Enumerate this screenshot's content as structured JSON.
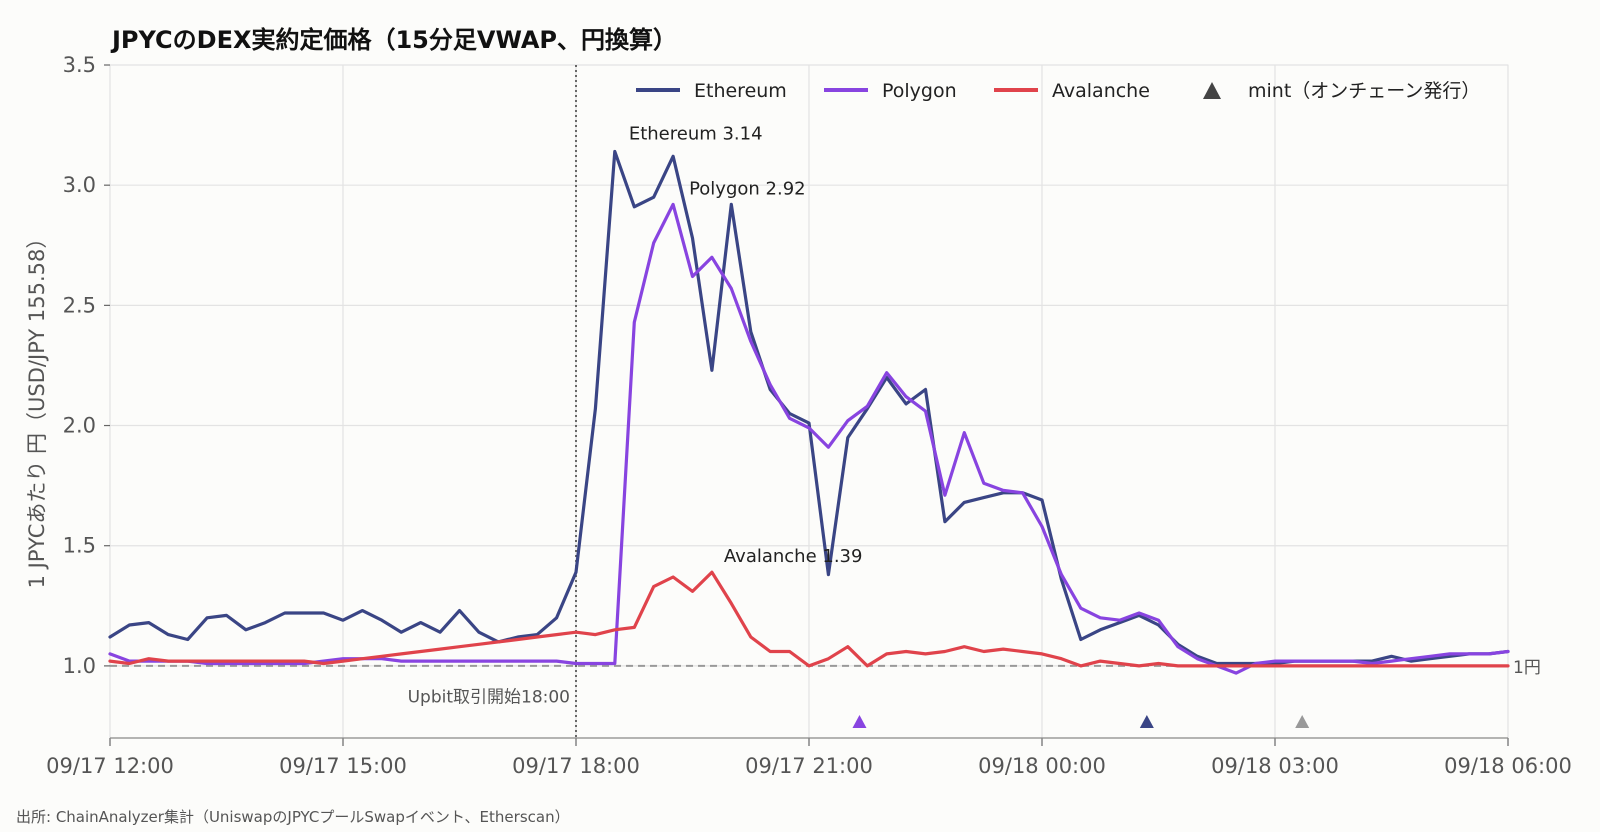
{
  "chart_data": {
    "type": "line",
    "title": "JPYCのDEX実約定価格（15分足VWAP、円換算）",
    "ylabel": "1 JPYCあたり 円（USD/JPY 155.58）",
    "source": "出所: ChainAnalyzer集計（UniswapのJPYCプールSwapイベント、Etherscan）",
    "x_ticks": [
      "09/17 12:00",
      "09/17 15:00",
      "09/17 18:00",
      "09/17 21:00",
      "09/18 00:00",
      "09/18 03:00",
      "09/18 06:00"
    ],
    "x_range_hours": [
      0,
      18
    ],
    "ylim": [
      0.7,
      3.5
    ],
    "y_ticks": [
      "1.0",
      "1.5",
      "2.0",
      "2.5",
      "3.0",
      "3.5"
    ],
    "grid": true,
    "legend_position": "top-right",
    "reference_line": {
      "y": 1.0,
      "label": "1円"
    },
    "event_line": {
      "x_hours": 6.0,
      "label": "Upbit取引開始18:00"
    },
    "series": [
      {
        "name": "Ethereum",
        "color": "#3a4585",
        "x_hours": [
          0,
          0.25,
          0.5,
          0.75,
          1.0,
          1.25,
          1.5,
          1.75,
          2.0,
          2.25,
          2.5,
          2.75,
          3.0,
          3.25,
          3.5,
          3.75,
          4.0,
          4.25,
          4.5,
          4.75,
          5.0,
          5.25,
          5.5,
          5.75,
          6.0,
          6.25,
          6.5,
          6.75,
          7.0,
          7.25,
          7.5,
          7.75,
          8.0,
          8.25,
          8.5,
          8.75,
          9.0,
          9.25,
          9.5,
          9.75,
          10.0,
          10.25,
          10.5,
          10.75,
          11.0,
          11.25,
          11.5,
          11.75,
          12.0,
          12.25,
          12.5,
          12.75,
          13.0,
          13.25,
          13.5,
          13.75,
          14.0,
          14.25,
          14.5,
          14.75,
          15.0,
          15.25,
          15.5,
          15.75,
          16.0,
          16.25,
          16.5,
          16.75,
          17.0,
          17.25,
          17.5,
          17.75,
          18.0
        ],
        "values": [
          1.12,
          1.17,
          1.18,
          1.13,
          1.11,
          1.2,
          1.21,
          1.15,
          1.18,
          1.22,
          1.22,
          1.22,
          1.19,
          1.23,
          1.19,
          1.14,
          1.18,
          1.14,
          1.23,
          1.14,
          1.1,
          1.12,
          1.13,
          1.2,
          1.39,
          2.07,
          3.14,
          2.91,
          2.95,
          3.12,
          2.78,
          2.23,
          2.92,
          2.39,
          2.15,
          2.05,
          2.01,
          1.38,
          1.95,
          2.07,
          2.2,
          2.09,
          2.15,
          1.6,
          1.68,
          1.7,
          1.72,
          1.72,
          1.69,
          1.36,
          1.11,
          1.15,
          1.18,
          1.21,
          1.17,
          1.09,
          1.04,
          1.01,
          1.01,
          1.01,
          1.01,
          1.02,
          1.02,
          1.02,
          1.02,
          1.02,
          1.04,
          1.02,
          1.03,
          1.04,
          1.05,
          1.05,
          1.06
        ]
      },
      {
        "name": "Polygon",
        "color": "#8844e0",
        "x_hours": [
          0,
          0.25,
          0.5,
          0.75,
          1.0,
          1.25,
          1.5,
          1.75,
          2.0,
          2.25,
          2.5,
          2.75,
          3.0,
          3.25,
          3.5,
          3.75,
          4.0,
          4.25,
          4.5,
          4.75,
          5.0,
          5.25,
          5.5,
          5.75,
          6.0,
          6.25,
          6.5,
          6.75,
          7.0,
          7.25,
          7.5,
          7.75,
          8.0,
          8.25,
          8.5,
          8.75,
          9.0,
          9.25,
          9.5,
          9.75,
          10.0,
          10.25,
          10.5,
          10.75,
          11.0,
          11.25,
          11.5,
          11.75,
          12.0,
          12.25,
          12.5,
          12.75,
          13.0,
          13.25,
          13.5,
          13.75,
          14.0,
          14.25,
          14.5,
          14.75,
          15.0,
          15.25,
          15.5,
          15.75,
          16.0,
          16.25,
          16.5,
          16.75,
          17.0,
          17.25,
          17.5,
          17.75,
          18.0
        ],
        "values": [
          1.05,
          1.02,
          1.02,
          1.02,
          1.02,
          1.01,
          1.01,
          1.01,
          1.01,
          1.01,
          1.01,
          1.02,
          1.03,
          1.03,
          1.03,
          1.02,
          1.02,
          1.02,
          1.02,
          1.02,
          1.02,
          1.02,
          1.02,
          1.02,
          1.01,
          1.01,
          1.01,
          2.43,
          2.76,
          2.92,
          2.62,
          2.7,
          2.57,
          2.35,
          2.17,
          2.03,
          1.99,
          1.91,
          2.02,
          2.08,
          2.22,
          2.12,
          2.06,
          1.71,
          1.97,
          1.76,
          1.73,
          1.72,
          1.58,
          1.38,
          1.24,
          1.2,
          1.19,
          1.22,
          1.19,
          1.08,
          1.03,
          1.0,
          0.97,
          1.01,
          1.02,
          1.02,
          1.02,
          1.02,
          1.02,
          1.01,
          1.02,
          1.03,
          1.04,
          1.05,
          1.05,
          1.05,
          1.06
        ]
      },
      {
        "name": "Avalanche",
        "color": "#e0434b",
        "x_hours": [
          0,
          0.25,
          0.5,
          0.75,
          1.0,
          1.25,
          1.5,
          1.75,
          2.0,
          2.25,
          2.5,
          2.75,
          3.0,
          3.25,
          3.5,
          3.75,
          4.0,
          4.25,
          4.5,
          4.75,
          5.0,
          5.25,
          5.5,
          5.75,
          6.0,
          6.25,
          6.5,
          6.75,
          7.0,
          7.25,
          7.5,
          7.75,
          8.0,
          8.25,
          8.5,
          8.75,
          9.0,
          9.25,
          9.5,
          9.75,
          10.0,
          10.25,
          10.5,
          10.75,
          11.0,
          11.25,
          11.5,
          11.75,
          12.0,
          12.25,
          12.5,
          12.75,
          13.0,
          13.25,
          13.5,
          13.75,
          14.0,
          14.25,
          14.5,
          14.75,
          15.0,
          15.25,
          15.5,
          15.75,
          16.0,
          16.25,
          16.5,
          16.75,
          17.0,
          17.25,
          17.5,
          17.75,
          18.0
        ],
        "values": [
          1.02,
          1.01,
          1.03,
          1.02,
          1.02,
          1.02,
          1.02,
          1.02,
          1.02,
          1.02,
          1.02,
          1.01,
          1.02,
          1.03,
          1.04,
          1.05,
          1.06,
          1.07,
          1.08,
          1.09,
          1.1,
          1.11,
          1.12,
          1.13,
          1.14,
          1.13,
          1.15,
          1.16,
          1.33,
          1.37,
          1.31,
          1.39,
          1.26,
          1.12,
          1.06,
          1.06,
          1.0,
          1.03,
          1.08,
          1.0,
          1.05,
          1.06,
          1.05,
          1.06,
          1.08,
          1.06,
          1.07,
          1.06,
          1.05,
          1.03,
          1.0,
          1.02,
          1.01,
          1.0,
          1.01,
          1.0,
          1.0,
          1.0,
          1.0,
          1.0,
          1.0,
          1.0,
          1.0,
          1.0,
          1.0,
          1.0,
          1.0,
          1.0,
          1.0,
          1.0,
          1.0,
          1.0,
          1.0
        ]
      }
    ],
    "peak_labels": [
      {
        "series": "Ethereum",
        "text": "Ethereum 3.14",
        "x_hours": 6.5,
        "y": 3.14
      },
      {
        "series": "Polygon",
        "text": "Polygon 2.92",
        "x_hours": 7.25,
        "y": 2.92
      },
      {
        "series": "Avalanche",
        "text": "Avalanche 1.39",
        "x_hours": 7.75,
        "y": 1.39
      }
    ],
    "mint_legend": "mint（オンチェーン発行）",
    "mint_events": [
      {
        "x_hours": 9.65,
        "chain": "Polygon",
        "color": "#8844e0"
      },
      {
        "x_hours": 13.35,
        "chain": "Ethereum",
        "color": "#3a4585"
      },
      {
        "x_hours": 15.35,
        "chain": "Avalanche",
        "color": "#999999"
      }
    ]
  }
}
